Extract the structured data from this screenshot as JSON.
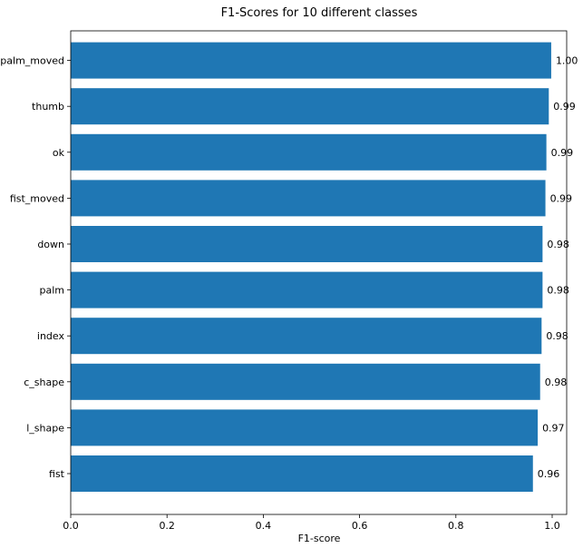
{
  "chart_data": {
    "type": "bar",
    "orientation": "horizontal",
    "title": "F1-Scores for 10 different classes",
    "xlabel": "F1-score",
    "ylabel": "",
    "xlim": [
      0,
      1.05
    ],
    "x_ticks": [
      0.0,
      0.2,
      0.4,
      0.6,
      0.8,
      1.0
    ],
    "x_tick_labels": [
      "0.0",
      "0.2",
      "0.4",
      "0.6",
      "0.8",
      "1.0"
    ],
    "grid": false,
    "bar_color": "#1f77b4",
    "categories": [
      "fist",
      "l_shape",
      "c_shape",
      "index",
      "palm",
      "down",
      "fist_moved",
      "ok",
      "thumb",
      "palm_moved"
    ],
    "values": [
      0.96,
      0.97,
      0.975,
      0.978,
      0.98,
      0.98,
      0.986,
      0.988,
      0.993,
      0.998
    ],
    "data_labels": [
      "0.96",
      "0.97",
      "0.98",
      "0.98",
      "0.98",
      "0.98",
      "0.99",
      "0.99",
      "0.99",
      "1.00"
    ]
  }
}
